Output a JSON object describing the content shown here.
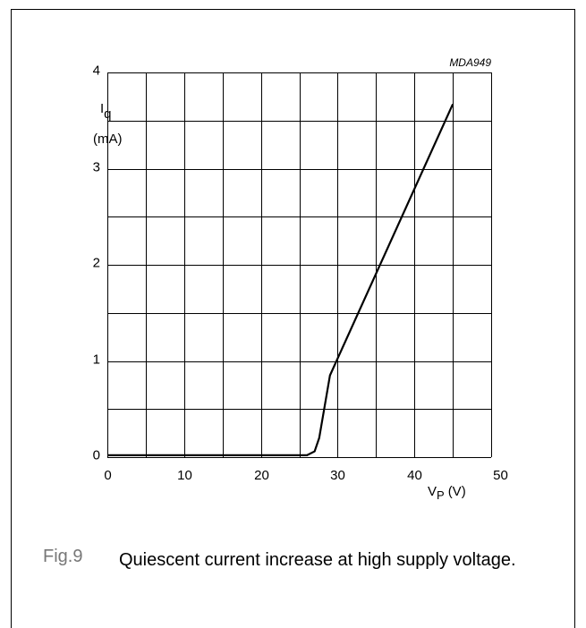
{
  "chart_data": {
    "type": "line",
    "code": "MDA949",
    "y_label": {
      "symbol": "I",
      "subscript": "q",
      "unit": "(mA)"
    },
    "x_label": {
      "symbol": "V",
      "subscript": "P",
      "unit": "(V)"
    },
    "x": [
      0,
      26,
      27,
      27.6,
      29,
      45
    ],
    "series": [
      {
        "color": "#000000",
        "values": [
          0.02,
          0.02,
          0.06,
          0.2,
          0.85,
          3.67
        ]
      }
    ],
    "xlim": [
      0,
      50
    ],
    "ylim": [
      0,
      4
    ],
    "xticks": [
      0,
      10,
      20,
      30,
      40,
      50
    ],
    "yticks": [
      0,
      1,
      2,
      3,
      4
    ],
    "xgrid_minor": [
      5,
      15,
      25,
      35,
      45
    ],
    "ygrid_minor": [
      0.5,
      1.5,
      2.5,
      3.5
    ],
    "grid": true,
    "caption": {
      "label": "Fig.9",
      "text": "Quiescent current increase at high supply voltage."
    }
  }
}
